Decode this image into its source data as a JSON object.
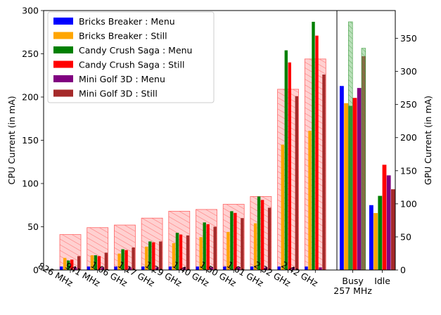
{
  "chart_data": {
    "type": "bar",
    "left_axis": {
      "label": "CPU Current (in mA)",
      "ylim": [
        0,
        300
      ],
      "ticks": [
        0,
        50,
        100,
        150,
        200,
        250,
        300
      ]
    },
    "right_axis": {
      "label": "GPU Current (in mA)",
      "ylim": [
        0,
        392
      ],
      "ticks": [
        0,
        50,
        100,
        150,
        200,
        250,
        300,
        350
      ]
    },
    "cpu_categories": [
      "826 MHz",
      "941 MHz",
      "1.06 GHz",
      "1.17 GHz",
      "1.29 GHz",
      "1.40 GHz",
      "1.50 GHz",
      "1.61 GHz",
      "2.32 GHz",
      "2.42 GHz"
    ],
    "gpu_categories": [
      "Busy\n257 MHz",
      "Idle"
    ],
    "cpu_envelope": [
      41,
      49,
      52,
      60,
      68,
      70,
      76,
      85,
      209,
      244
    ],
    "gpu_envelope": [
      [
        375,
        335
      ],
      [
        null,
        null
      ]
    ],
    "series": [
      {
        "name": "Bricks Breaker : Menu",
        "color": "#0000ff",
        "cpu_values": [
          4,
          4,
          4,
          4,
          4,
          4,
          4,
          4,
          4,
          4
        ],
        "gpu_values": [
          278,
          98
        ]
      },
      {
        "name": "Bricks Breaker : Still",
        "color": "#ffa500",
        "cpu_values": [
          14,
          17,
          19,
          27,
          31,
          38,
          44,
          54,
          145,
          161
        ],
        "gpu_values": [
          252,
          86
        ]
      },
      {
        "name": "Candy Crush Saga : Menu",
        "color": "#008000",
        "cpu_values": [
          11,
          17,
          24,
          33,
          43,
          55,
          68,
          85,
          254,
          287
        ],
        "gpu_values": [
          248,
          112
        ]
      },
      {
        "name": "Candy Crush Saga : Still",
        "color": "#ff0000",
        "cpu_values": [
          12,
          16,
          23,
          32,
          41,
          53,
          66,
          81,
          240,
          271
        ],
        "gpu_values": [
          260,
          159
        ]
      },
      {
        "name": "Mini Golf 3D : Menu",
        "color": "#800080",
        "cpu_values": [
          3,
          3,
          3,
          3,
          3,
          3,
          3,
          3,
          3,
          3
        ],
        "gpu_values": [
          275,
          143
        ]
      },
      {
        "name": "Mini Golf 3D : Still",
        "color": "#a52a2a",
        "cpu_values": [
          16,
          20,
          26,
          33,
          40,
          50,
          60,
          72,
          201,
          226
        ],
        "gpu_values": [
          323,
          122
        ]
      }
    ],
    "legend_position": "upper-left",
    "grid": false
  }
}
